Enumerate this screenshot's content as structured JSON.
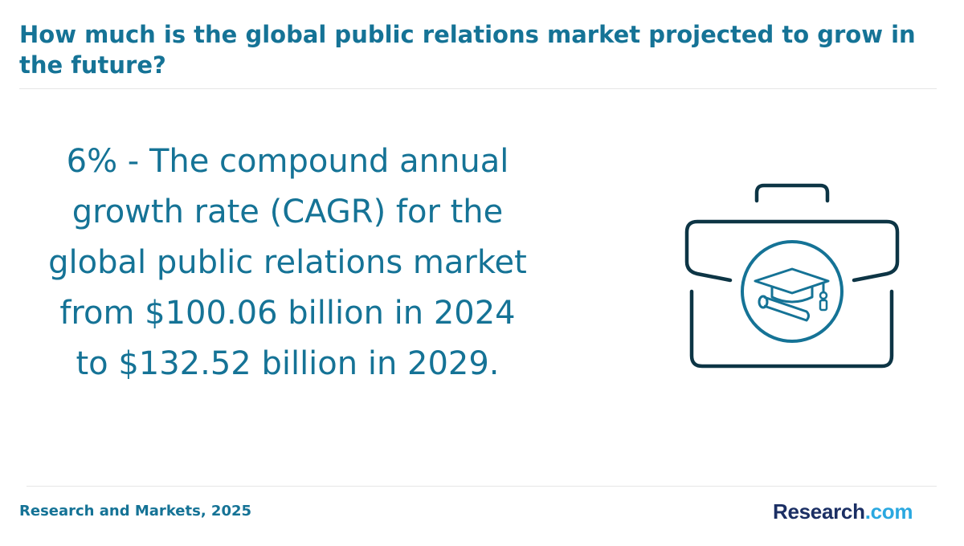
{
  "header": {
    "title": "How much is the global public relations market projected to grow in the future?"
  },
  "main": {
    "stat_text": "6% - The compound annual growth rate (CAGR) for the global public relations market from $100.06 billion in 2024 to $132.52 billion in 2029.",
    "illustration_icon": "briefcase-graduation-cap-icon"
  },
  "footer": {
    "source": "Research and Markets, 2025",
    "brand_main": "Research",
    "brand_suffix": ".com"
  },
  "colors": {
    "accent": "#157396",
    "icon_dark": "#0d3545",
    "brand_navy": "#1b2f64",
    "brand_cyan": "#2aa8e0"
  }
}
